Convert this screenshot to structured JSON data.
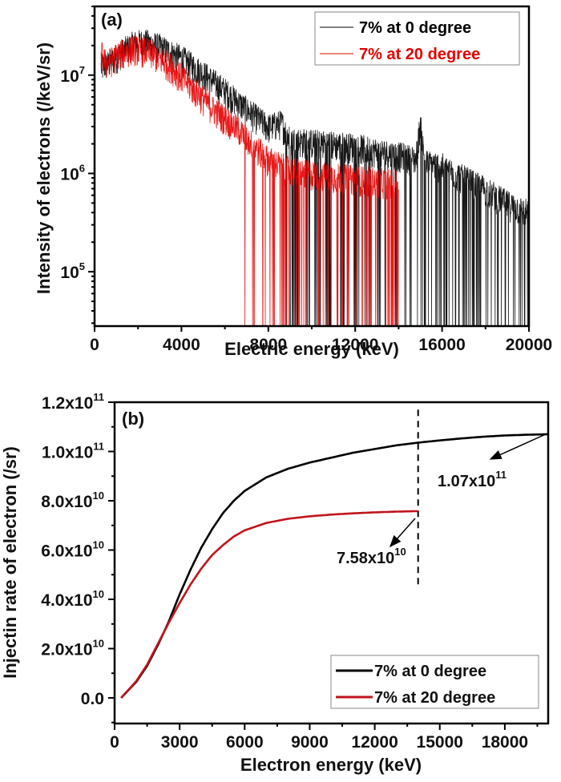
{
  "chart_data": [
    {
      "panel": "(a)",
      "type": "line",
      "xlabel": "Electric energy (keV)",
      "ylabel": "Intensity of electrons (/keV/sr)",
      "xlim": [
        0,
        20000
      ],
      "ylim": [
        28000,
        50000000
      ],
      "yscale": "log",
      "xticks": [
        0,
        4000,
        8000,
        12000,
        16000,
        20000
      ],
      "xtick_labels": [
        "0",
        "4000",
        "8000",
        "12000",
        "16000",
        "20000"
      ],
      "yticks": [
        100000,
        1000000,
        10000000
      ],
      "ytick_labels": [
        {
          "base": "10",
          "exp": "5"
        },
        {
          "base": "10",
          "exp": "6"
        },
        {
          "base": "10",
          "exp": "7"
        }
      ],
      "legend": {
        "position": "top-right",
        "entries": [
          {
            "label": "7% at 0 degree",
            "color": "#000000"
          },
          {
            "label": "7% at 20 degree",
            "color": "#e60000"
          }
        ]
      },
      "series": [
        {
          "name": "7% at 0 degree",
          "color": "#000000",
          "x": [
            300,
            700,
            1200,
            1800,
            2300,
            3000,
            4000,
            5000,
            6000,
            7000,
            8000,
            8600,
            9000,
            10000,
            11000,
            12000,
            13000,
            14000,
            14800,
            15000,
            15200,
            16000,
            17000,
            18000,
            19000,
            20000
          ],
          "y": [
            12000000,
            13500000,
            17000000,
            21000000,
            22000000,
            19500000,
            15000000,
            10500000,
            7000000,
            4500000,
            3000000,
            3300000,
            2200000,
            2100000,
            2000000,
            1900000,
            1700000,
            1550000,
            1400000,
            3300000,
            1300000,
            1200000,
            900000,
            700000,
            500000,
            400000
          ],
          "noise_fraction": 0.35,
          "dropout_start": 8800
        },
        {
          "name": "7% at 20 degree",
          "color": "#e60000",
          "x": [
            300,
            500,
            800,
            1200,
            1800,
            2500,
            3500,
            4500,
            5500,
            6500,
            7000,
            8000,
            9000,
            10000,
            11000,
            12000,
            13000,
            14000
          ],
          "y": [
            17000000,
            13500000,
            14500000,
            17000000,
            19000000,
            17500000,
            12500000,
            7500000,
            4500000,
            3000000,
            2300000,
            1400000,
            1100000,
            1000000,
            950000,
            900000,
            850000,
            800000
          ],
          "noise_fraction": 0.35,
          "dropout_start": 6900
        }
      ]
    },
    {
      "panel": "(b)",
      "type": "line",
      "xlabel": "Electron energy (keV)",
      "ylabel": "Injectin rate of electron (/sr)",
      "xlim": [
        0,
        20000
      ],
      "ylim": [
        -10400000000.0,
        120000000000.0
      ],
      "xticks": [
        0,
        3000,
        6000,
        9000,
        12000,
        15000,
        18000
      ],
      "xtick_labels": [
        "0",
        "3000",
        "6000",
        "9000",
        "12000",
        "15000",
        "18000"
      ],
      "yticks": [
        0,
        20000000000.0,
        40000000000.0,
        60000000000.0,
        80000000000.0,
        100000000000.0,
        120000000000.0
      ],
      "ytick_labels": [
        {
          "base": "0.0",
          "exp": ""
        },
        {
          "base": "2.0x10",
          "exp": "10"
        },
        {
          "base": "4.0x10",
          "exp": "10"
        },
        {
          "base": "6.0x10",
          "exp": "10"
        },
        {
          "base": "8.0x10",
          "exp": "10"
        },
        {
          "base": "1.0x10",
          "exp": "11"
        },
        {
          "base": "1.2x10",
          "exp": "11"
        }
      ],
      "legend": {
        "position": "bottom-right",
        "entries": [
          {
            "label": "7% at 0 degree",
            "color": "#000000"
          },
          {
            "label": "7% at 20 degree",
            "color": "#c0141c"
          }
        ]
      },
      "series": [
        {
          "name": "7% at 0 degree",
          "color": "#000000",
          "x": [
            300,
            1000,
            1500,
            2000,
            2500,
            3000,
            3500,
            4000,
            4500,
            5000,
            5500,
            6000,
            7000,
            8000,
            9000,
            10000,
            11000,
            12000,
            13000,
            14000,
            15000,
            16000,
            17000,
            18000,
            19000,
            20000
          ],
          "y": [
            0,
            6500000000.0,
            13000000000.0,
            21500000000.0,
            31000000000.0,
            42000000000.0,
            52000000000.0,
            61000000000.0,
            68500000000.0,
            75000000000.0,
            80000000000.0,
            84000000000.0,
            89500000000.0,
            93000000000.0,
            95500000000.0,
            97500000000.0,
            99500000000.0,
            101000000000.0,
            102500000000.0,
            103600000000.0,
            104500000000.0,
            105300000000.0,
            106000000000.0,
            106500000000.0,
            106800000000.0,
            107000000000.0
          ]
        },
        {
          "name": "7% at 20 degree",
          "color": "#c0141c",
          "x": [
            300,
            1000,
            1500,
            2000,
            2500,
            3000,
            3500,
            4000,
            4500,
            5000,
            5500,
            6000,
            7000,
            8000,
            9000,
            10000,
            11000,
            12000,
            13000,
            14000
          ],
          "y": [
            0,
            6800000000.0,
            13500000000.0,
            22000000000.0,
            30500000000.0,
            38500000000.0,
            46000000000.0,
            52500000000.0,
            58000000000.0,
            62000000000.0,
            65500000000.0,
            68000000000.0,
            71000000000.0,
            72700000000.0,
            73700000000.0,
            74400000000.0,
            74900000000.0,
            75300000000.0,
            75600000000.0,
            75800000000.0
          ]
        }
      ],
      "annotations": [
        {
          "text_base": "1.07x10",
          "text_exp": "11",
          "points_to": [
            20000,
            107000000000.0
          ]
        },
        {
          "text_base": "7.58x10",
          "text_exp": "10",
          "points_to": [
            14000,
            75800000000.0
          ]
        }
      ],
      "vline": {
        "x": 14000,
        "style": "dashed",
        "yrange": [
          45000000000.0,
          117000000000.0
        ]
      }
    }
  ]
}
